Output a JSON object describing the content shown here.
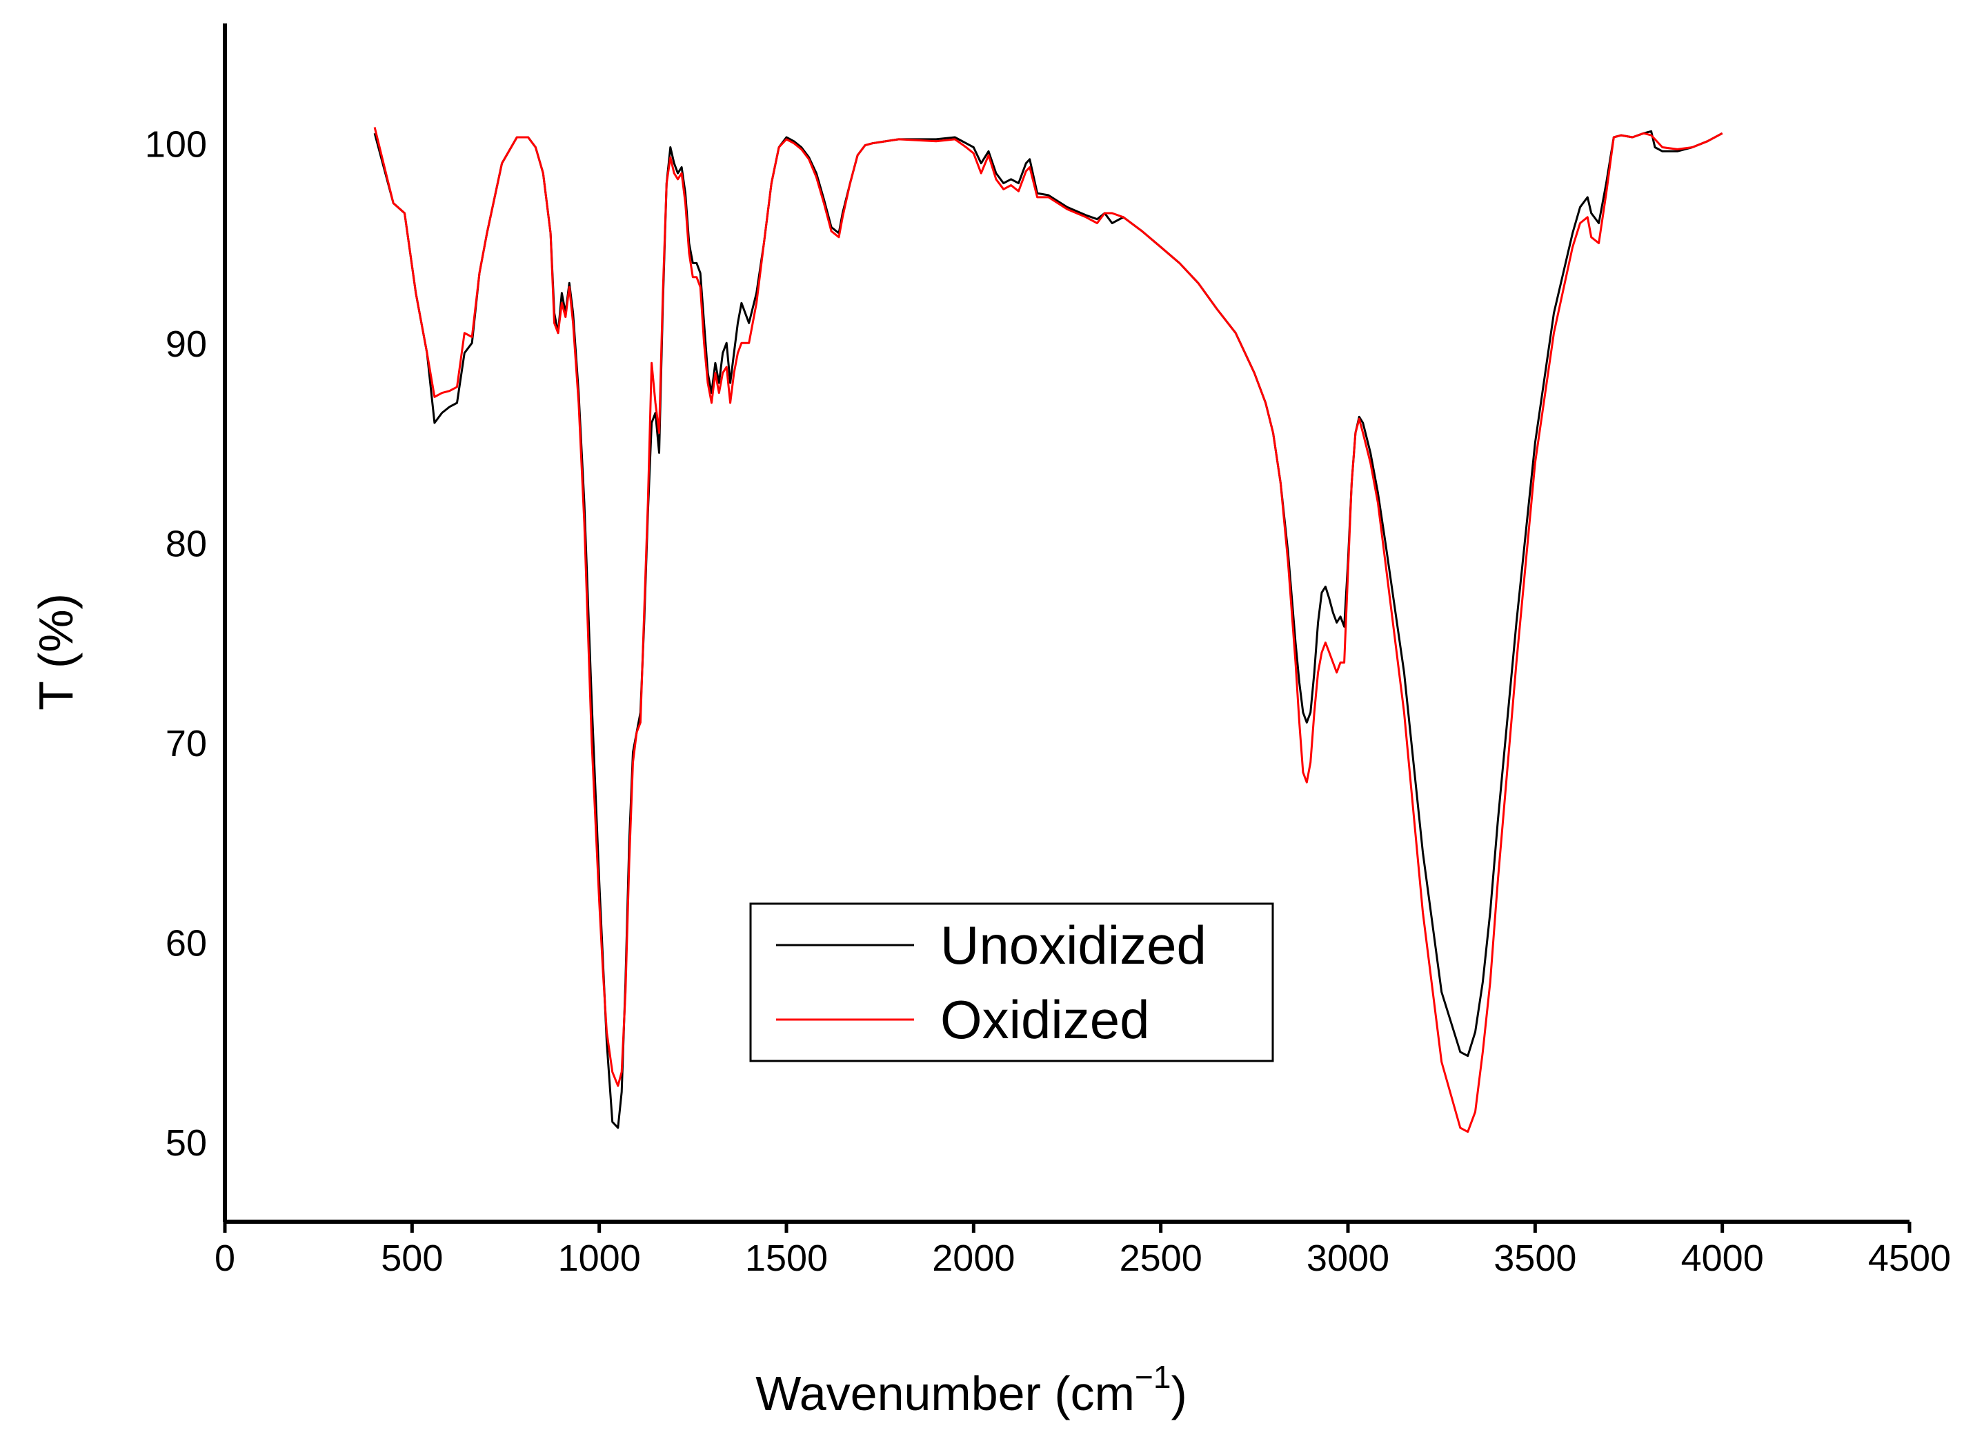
{
  "chart_data": {
    "type": "line",
    "title": "",
    "xlabel": "Wavenumber (cm",
    "xlabel_sup": "−1",
    "xlabel_close": ")",
    "ylabel": "T (%)",
    "xlim": [
      0,
      4500
    ],
    "ylim": [
      46,
      106
    ],
    "xticks": [
      "0",
      "500",
      "1000",
      "1500",
      "2000",
      "2500",
      "3000",
      "3500",
      "4000",
      "4500"
    ],
    "yticks": [
      "50",
      "60",
      "70",
      "80",
      "90",
      "100"
    ],
    "legend": {
      "position": "center-bottom",
      "entries": [
        "Unoxidized",
        "Oxidized"
      ]
    },
    "colors": {
      "Unoxidized": "#000000",
      "Oxidized": "#ff0000"
    },
    "series": [
      {
        "name": "Unoxidized",
        "x": [
          400,
          450,
          480,
          510,
          540,
          560,
          580,
          600,
          620,
          640,
          660,
          680,
          700,
          740,
          780,
          810,
          830,
          850,
          870,
          880,
          890,
          900,
          910,
          920,
          930,
          945,
          960,
          980,
          1000,
          1010,
          1020,
          1035,
          1050,
          1060,
          1070,
          1080,
          1090,
          1100,
          1110,
          1120,
          1130,
          1140,
          1150,
          1160,
          1170,
          1180,
          1190,
          1200,
          1210,
          1220,
          1230,
          1240,
          1250,
          1260,
          1270,
          1280,
          1290,
          1300,
          1310,
          1320,
          1330,
          1340,
          1350,
          1360,
          1370,
          1380,
          1390,
          1400,
          1420,
          1440,
          1460,
          1480,
          1500,
          1520,
          1540,
          1560,
          1580,
          1600,
          1620,
          1640,
          1650,
          1670,
          1690,
          1710,
          1730,
          1800,
          1900,
          1950,
          1980,
          2000,
          2020,
          2040,
          2060,
          2080,
          2100,
          2120,
          2140,
          2150,
          2170,
          2200,
          2250,
          2300,
          2330,
          2350,
          2370,
          2400,
          2450,
          2500,
          2550,
          2600,
          2650,
          2700,
          2750,
          2780,
          2800,
          2820,
          2840,
          2860,
          2870,
          2880,
          2890,
          2900,
          2910,
          2920,
          2930,
          2940,
          2950,
          2960,
          2970,
          2980,
          2990,
          3000,
          3010,
          3020,
          3030,
          3040,
          3060,
          3080,
          3100,
          3150,
          3200,
          3250,
          3300,
          3320,
          3340,
          3360,
          3380,
          3400,
          3450,
          3500,
          3550,
          3600,
          3620,
          3640,
          3650,
          3670,
          3690,
          3710,
          3730,
          3760,
          3790,
          3810,
          3820,
          3840,
          3880,
          3920,
          3960,
          4000
        ],
        "y": [
          100.5,
          97.0,
          96.5,
          92.5,
          89.5,
          86.0,
          86.5,
          86.8,
          87.0,
          89.5,
          90.0,
          93.5,
          95.5,
          99.0,
          100.3,
          100.3,
          99.8,
          98.5,
          95.5,
          91.5,
          90.5,
          92.5,
          91.5,
          93.0,
          91.5,
          87.5,
          82.0,
          72.0,
          63.0,
          59.0,
          55.0,
          51.0,
          50.7,
          52.5,
          58.0,
          65.0,
          69.5,
          70.5,
          71.5,
          76.0,
          81.5,
          86.0,
          86.5,
          84.5,
          92.0,
          98.0,
          99.8,
          99.0,
          98.5,
          98.8,
          97.5,
          95.0,
          94.0,
          94.0,
          93.5,
          91.0,
          88.5,
          87.5,
          89.0,
          88.0,
          89.5,
          90.0,
          88.0,
          89.5,
          91.0,
          92.0,
          91.5,
          91.0,
          92.5,
          95.0,
          98.0,
          99.8,
          100.3,
          100.1,
          99.8,
          99.3,
          98.5,
          97.2,
          95.8,
          95.5,
          96.5,
          98.0,
          99.4,
          99.9,
          100.0,
          100.2,
          100.2,
          100.3,
          100.0,
          99.8,
          99.0,
          99.6,
          98.5,
          98.0,
          98.2,
          98.0,
          99.0,
          99.2,
          97.5,
          97.4,
          96.8,
          96.4,
          96.2,
          96.5,
          96.0,
          96.3,
          95.6,
          94.8,
          94.0,
          93.0,
          91.7,
          90.5,
          88.5,
          87.0,
          85.5,
          83.0,
          79.5,
          75.0,
          73.0,
          71.5,
          71.0,
          71.5,
          73.5,
          76.0,
          77.5,
          77.8,
          77.2,
          76.5,
          76.0,
          76.3,
          75.8,
          79.0,
          83.0,
          85.5,
          86.3,
          86.0,
          84.5,
          82.5,
          80.0,
          73.5,
          64.5,
          57.5,
          54.5,
          54.3,
          55.5,
          58.0,
          61.5,
          66.0,
          76.0,
          85.0,
          91.5,
          95.5,
          96.8,
          97.3,
          96.5,
          96.0,
          98.0,
          100.3,
          100.4,
          100.3,
          100.5,
          100.6,
          99.8,
          99.6,
          99.6,
          99.8,
          100.1,
          100.5
        ],
        "label": "Unoxidized"
      },
      {
        "name": "Oxidized",
        "x": [
          400,
          450,
          480,
          510,
          540,
          560,
          580,
          600,
          620,
          640,
          660,
          680,
          700,
          740,
          780,
          810,
          830,
          850,
          870,
          880,
          890,
          900,
          910,
          920,
          930,
          945,
          960,
          980,
          1000,
          1010,
          1020,
          1035,
          1050,
          1060,
          1070,
          1080,
          1090,
          1100,
          1110,
          1120,
          1130,
          1140,
          1150,
          1160,
          1170,
          1180,
          1190,
          1200,
          1210,
          1220,
          1230,
          1240,
          1250,
          1260,
          1270,
          1280,
          1290,
          1300,
          1310,
          1320,
          1330,
          1340,
          1350,
          1360,
          1370,
          1380,
          1390,
          1400,
          1420,
          1440,
          1460,
          1480,
          1500,
          1520,
          1540,
          1560,
          1580,
          1600,
          1620,
          1640,
          1650,
          1670,
          1690,
          1710,
          1730,
          1800,
          1900,
          1950,
          1980,
          2000,
          2020,
          2040,
          2060,
          2080,
          2100,
          2120,
          2140,
          2150,
          2170,
          2200,
          2250,
          2300,
          2330,
          2350,
          2370,
          2400,
          2450,
          2500,
          2550,
          2600,
          2650,
          2700,
          2750,
          2780,
          2800,
          2820,
          2840,
          2860,
          2870,
          2880,
          2890,
          2900,
          2910,
          2920,
          2930,
          2940,
          2950,
          2960,
          2970,
          2980,
          2990,
          3000,
          3010,
          3020,
          3030,
          3040,
          3060,
          3080,
          3100,
          3150,
          3200,
          3250,
          3300,
          3320,
          3340,
          3360,
          3380,
          3400,
          3450,
          3500,
          3550,
          3600,
          3620,
          3640,
          3650,
          3670,
          3690,
          3710,
          3730,
          3760,
          3790,
          3810,
          3820,
          3840,
          3880,
          3920,
          3960,
          4000
        ],
        "y": [
          100.8,
          97.0,
          96.5,
          92.5,
          89.5,
          87.3,
          87.5,
          87.6,
          87.8,
          90.5,
          90.3,
          93.5,
          95.5,
          99.0,
          100.3,
          100.3,
          99.8,
          98.5,
          95.5,
          91.0,
          90.5,
          92.0,
          91.3,
          92.8,
          91.0,
          87.0,
          81.0,
          70.0,
          62.0,
          58.5,
          55.5,
          53.5,
          52.8,
          53.5,
          57.5,
          64.0,
          69.0,
          70.5,
          71.0,
          76.5,
          82.0,
          89.0,
          87.0,
          85.5,
          92.5,
          98.0,
          99.3,
          98.5,
          98.2,
          98.5,
          97.0,
          94.5,
          93.3,
          93.3,
          92.8,
          90.0,
          88.0,
          87.0,
          88.5,
          87.5,
          88.5,
          88.8,
          87.0,
          88.5,
          89.5,
          90.0,
          90.0,
          90.0,
          92.0,
          95.0,
          98.0,
          99.8,
          100.2,
          100.0,
          99.7,
          99.2,
          98.3,
          97.0,
          95.6,
          95.3,
          96.3,
          98.0,
          99.4,
          99.9,
          100.0,
          100.2,
          100.1,
          100.2,
          99.8,
          99.5,
          98.5,
          99.4,
          98.2,
          97.7,
          97.9,
          97.6,
          98.6,
          98.8,
          97.3,
          97.3,
          96.7,
          96.3,
          96.0,
          96.5,
          96.5,
          96.3,
          95.6,
          94.8,
          94.0,
          93.0,
          91.7,
          90.5,
          88.5,
          87.0,
          85.5,
          83.0,
          79.0,
          74.0,
          71.0,
          68.5,
          68.0,
          69.0,
          71.5,
          73.5,
          74.5,
          75.0,
          74.5,
          74.0,
          73.5,
          74.0,
          74.0,
          78.5,
          83.0,
          85.5,
          86.2,
          85.5,
          84.0,
          82.0,
          79.0,
          71.5,
          61.5,
          54.0,
          50.7,
          50.5,
          51.5,
          54.5,
          58.0,
          63.0,
          74.0,
          84.0,
          90.5,
          94.8,
          96.0,
          96.3,
          95.3,
          95.0,
          97.5,
          100.3,
          100.4,
          100.3,
          100.5,
          100.4,
          100.2,
          99.8,
          99.7,
          99.8,
          100.1,
          100.5
        ],
        "label": "Oxidized"
      }
    ]
  }
}
